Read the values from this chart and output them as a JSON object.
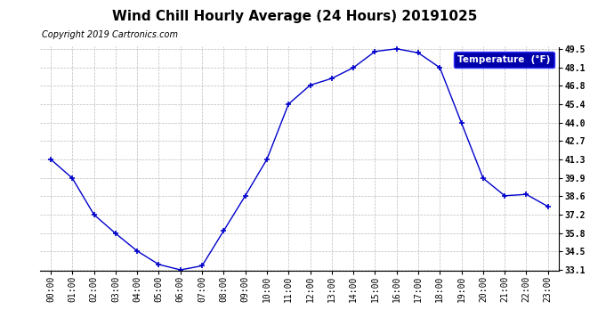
{
  "title": "Wind Chill Hourly Average (24 Hours) 20191025",
  "copyright_text": "Copyright 2019 Cartronics.com",
  "legend_label": "Temperature  (°F)",
  "x_labels": [
    "00:00",
    "01:00",
    "02:00",
    "03:00",
    "04:00",
    "05:00",
    "06:00",
    "07:00",
    "08:00",
    "09:00",
    "10:00",
    "11:00",
    "12:00",
    "13:00",
    "14:00",
    "15:00",
    "16:00",
    "17:00",
    "18:00",
    "19:00",
    "20:00",
    "21:00",
    "22:00",
    "23:00"
  ],
  "y_values": [
    41.3,
    39.9,
    37.2,
    35.8,
    34.5,
    33.5,
    33.1,
    33.4,
    36.0,
    38.6,
    41.3,
    45.4,
    46.8,
    47.3,
    48.1,
    49.3,
    49.5,
    49.2,
    48.1,
    44.0,
    39.9,
    38.6,
    38.7,
    37.8
  ],
  "ylim_min": 33.1,
  "ylim_max": 49.5,
  "yticks": [
    33.1,
    34.5,
    35.8,
    37.2,
    38.6,
    39.9,
    41.3,
    42.7,
    44.0,
    45.4,
    46.8,
    48.1,
    49.5
  ],
  "line_color": "#0000cc",
  "marker_color": "#0000cc",
  "bg_color": "#ffffff",
  "plot_bg_color": "#ffffff",
  "grid_color": "#bbbbbb",
  "title_fontsize": 11,
  "copyright_fontsize": 7,
  "tick_fontsize": 7,
  "legend_bg_color": "#0000aa",
  "legend_text_color": "#ffffff"
}
